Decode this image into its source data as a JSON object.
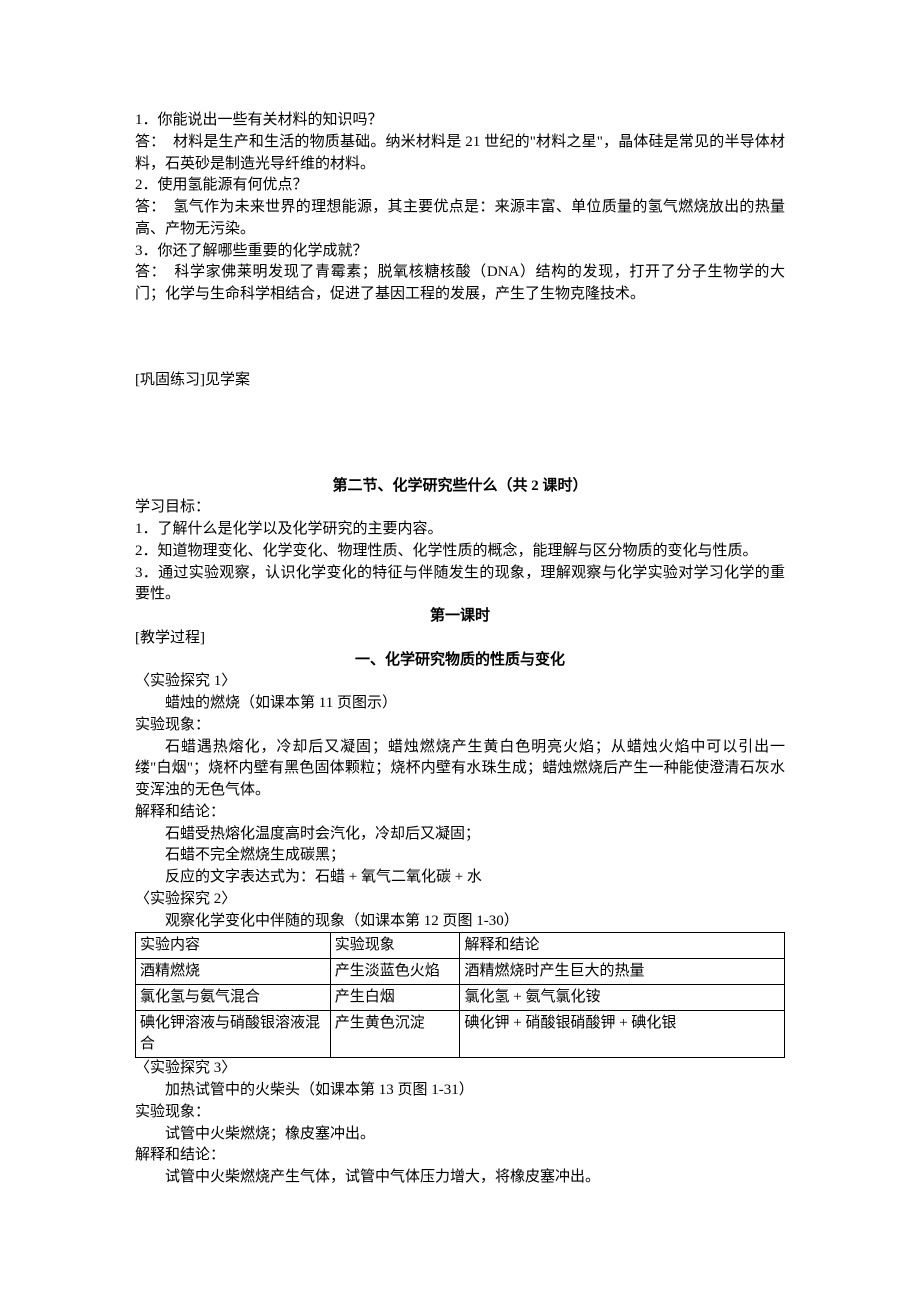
{
  "qa": {
    "q1": "1．你能说出一些有关材料的知识吗？",
    "a1": "答：　材料是生产和生活的物质基础。纳米材料是 21 世纪的\"材料之星\"，晶体硅是常见的半导体材料，石英砂是制造光导纤维的材料。",
    "q2": "2．使用氢能源有何优点？",
    "a2": "答：　氢气作为未来世界的理想能源，其主要优点是：来源丰富、单位质量的氢气燃烧放出的热量高、产物无污染。",
    "q3": "3．你还了解哪些重要的化学成就？",
    "a3": "答：　科学家佛莱明发现了青霉素；脱氧核糖核酸（DNA）结构的发现，打开了分子生物学的大门；化学与生命科学相结合，促进了基因工程的发展，产生了生物克隆技术。"
  },
  "practice_note": "[巩固练习]见学案",
  "section2": {
    "title": "第二节、化学研究些什么（共 2 课时）",
    "goals_label": "学习目标：",
    "goal1": "1．了解什么是化学以及化学研究的主要内容。",
    "goal2": "2．知道物理变化、化学变化、物理性质、化学性质的概念，能理解与区分物质的变化与性质。",
    "goal3": "3．通过实验观察，认识化学变化的特征与伴随发生的现象，理解观察与化学实验对学习化学的重要性。",
    "lesson1_label": "第一课时",
    "teach_label": "[教学过程]",
    "part1_title": "一、化学研究物质的性质与变化",
    "exp1": {
      "label": "〈实验探究 1〉",
      "line1": "蜡烛的燃烧（如课本第 11 页图示）",
      "phen_label": "实验现象：",
      "phen": "石蜡遇热熔化，冷却后又凝固；蜡烛燃烧产生黄白色明亮火焰；从蜡烛火焰中可以引出一缕\"白烟\"；烧杯内壁有黑色固体颗粒；烧杯内壁有水珠生成；蜡烛燃烧后产生一种能使澄清石灰水变浑浊的无色气体。",
      "expl_label": "解释和结论：",
      "expl1": "石蜡受热熔化温度高时会汽化，冷却后又凝固；",
      "expl2": "石蜡不完全燃烧生成碳黑；",
      "expl3": "反应的文字表达式为：石蜡 + 氧气二氧化碳 + 水"
    },
    "exp2": {
      "label": "〈实验探究 2〉",
      "line1": "观察化学变化中伴随的现象（如课本第 12 页图 1-30）"
    },
    "table": {
      "header": [
        "实验内容",
        "实验现象",
        "解释和结论"
      ],
      "rows": [
        [
          "酒精燃烧",
          "产生淡蓝色火焰",
          "酒精燃烧时产生巨大的热量"
        ],
        [
          "氯化氢与氨气混合",
          "产生白烟",
          "氯化氢 + 氨气氯化铵"
        ],
        [
          "碘化钾溶液与硝酸银溶液混合",
          "产生黄色沉淀",
          "碘化钾 + 硝酸银硝酸钾 + 碘化银"
        ]
      ]
    },
    "exp3": {
      "label": "〈实验探究 3〉",
      "line1": "加热试管中的火柴头（如课本第 13 页图 1-31）",
      "phen_label": "实验现象：",
      "phen": "试管中火柴燃烧；橡皮塞冲出。",
      "expl_label": "解释和结论：",
      "expl": "试管中火柴燃烧产生气体，试管中气体压力增大，将橡皮塞冲出。"
    }
  },
  "style": {
    "text_color": "#000000",
    "background_color": "#ffffff",
    "border_color": "#000000",
    "font_size_pt": 11,
    "title_weight": "bold"
  }
}
